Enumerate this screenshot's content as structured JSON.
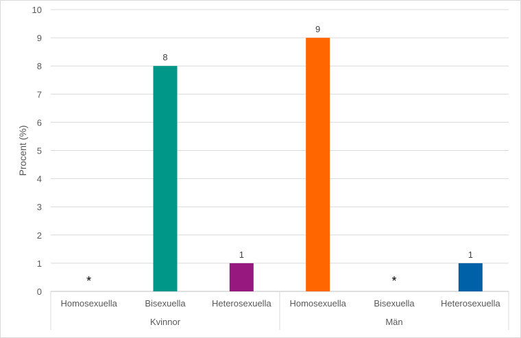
{
  "chart_data": {
    "type": "bar",
    "ylabel": "Procent (%)",
    "xlabel": "",
    "title": "",
    "ylim": [
      0,
      10
    ],
    "yticks": [
      "0",
      "1",
      "2",
      "3",
      "4",
      "5",
      "6",
      "7",
      "8",
      "9",
      "10"
    ],
    "grid": true,
    "groups": [
      {
        "label": "Kvinnor",
        "bars": [
          {
            "category": "Homosexuella",
            "value": null,
            "label": "*",
            "color": null
          },
          {
            "category": "Bisexuella",
            "value": 8,
            "label": "8",
            "color": "#009688"
          },
          {
            "category": "Heterosexuella",
            "value": 1,
            "label": "1",
            "color": "#97197f"
          }
        ]
      },
      {
        "label": "Män",
        "bars": [
          {
            "category": "Homosexuella",
            "value": 9,
            "label": "9",
            "color": "#ff6600"
          },
          {
            "category": "Bisexuella",
            "value": null,
            "label": "*",
            "color": null
          },
          {
            "category": "Heterosexuella",
            "value": 1,
            "label": "1",
            "color": "#0060a8"
          }
        ]
      }
    ]
  }
}
